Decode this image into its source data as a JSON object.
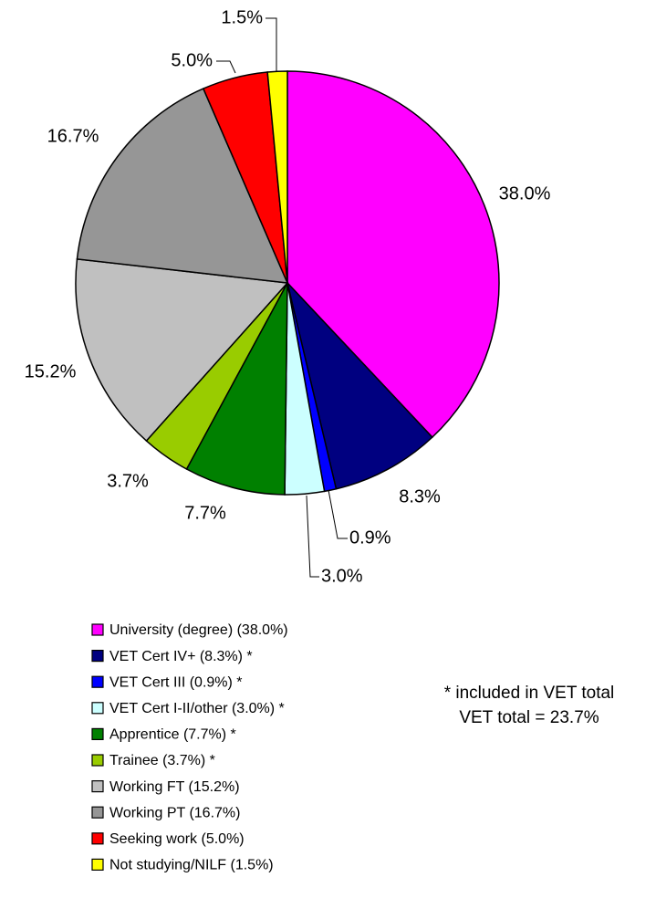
{
  "chart_data": {
    "type": "pie",
    "categories": [
      "University (degree) (38.0%)",
      "VET Cert IV+ (8.3%) *",
      "VET Cert III (0.9%) *",
      "VET Cert I-II/other (3.0%) *",
      "Apprentice (7.7%) *",
      "Trainee (3.7%) *",
      "Working FT (15.2%)",
      "Working PT (16.7%)",
      "Seeking work (5.0%)",
      "Not studying/NILF (1.5%)"
    ],
    "values": [
      38.0,
      8.3,
      0.9,
      3.0,
      7.7,
      3.7,
      15.2,
      16.7,
      5.0,
      1.5
    ],
    "value_labels": [
      "38.0%",
      "8.3%",
      "0.9%",
      "3.0%",
      "7.7%",
      "3.7%",
      "15.2%",
      "16.7%",
      "5.0%",
      "1.5%"
    ],
    "colors": [
      "#FF00FF",
      "#000080",
      "#0000FF",
      "#CCFFFF",
      "#008000",
      "#99CC00",
      "#C0C0C0",
      "#969696",
      "#FF0000",
      "#FFFF00"
    ],
    "annotations": [
      "* included in VET total",
      "VET total = 23.7%"
    ]
  }
}
